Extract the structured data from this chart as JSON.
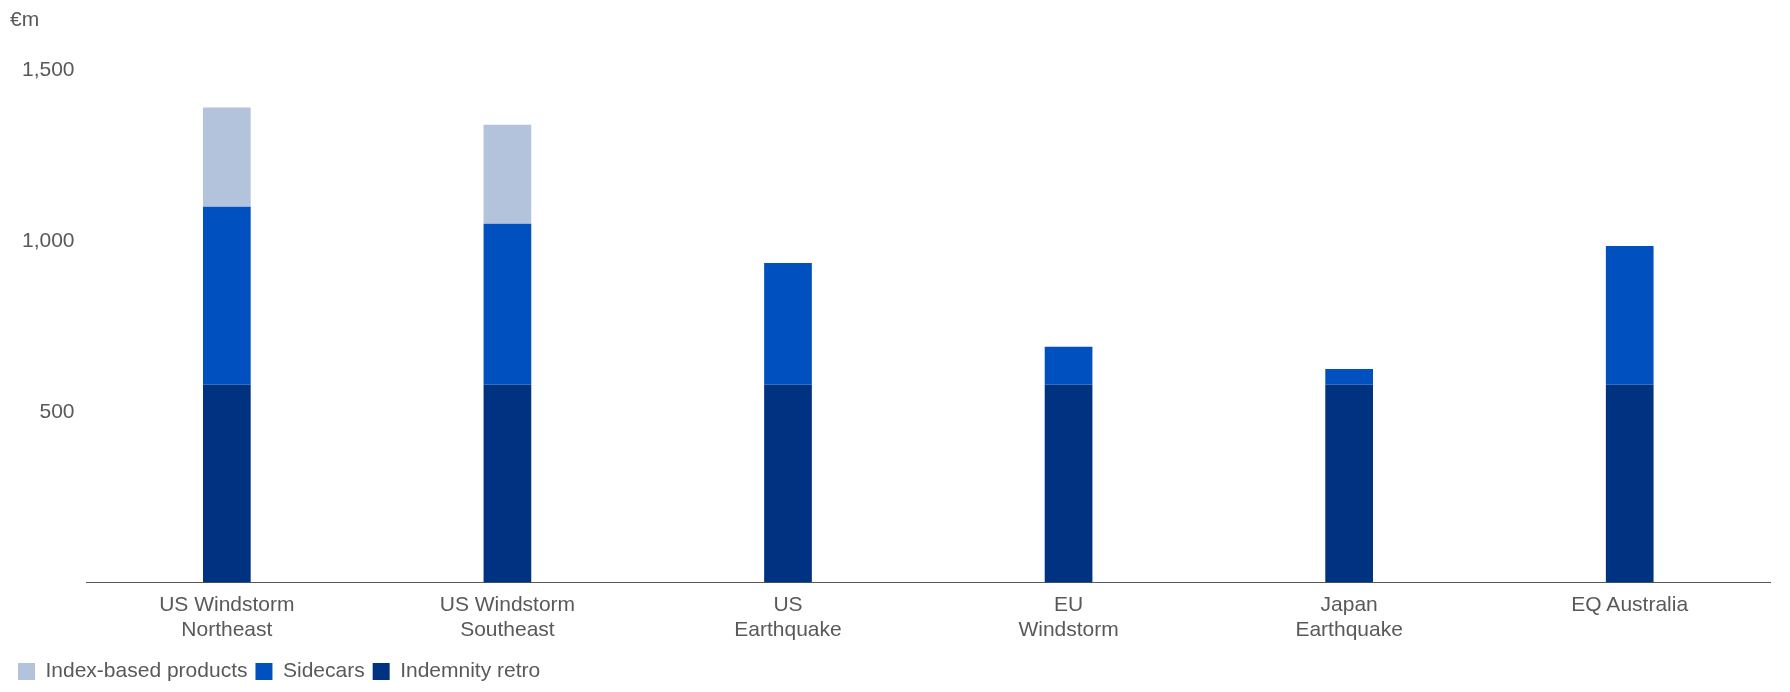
{
  "chart_data": {
    "type": "bar",
    "ylabel": "€m",
    "categories": [
      "US Windstorm\nNortheast",
      "US Windstorm\nSoutheast",
      "US\nEarthquake",
      "EU\nWindstorm",
      "Japan\nEarthquake",
      "EQ Australia"
    ],
    "stacked": true,
    "series": [
      {
        "name": "Indemnity retro",
        "color": "#003282",
        "values": [
          580,
          580,
          580,
          580,
          580,
          580
        ]
      },
      {
        "name": "Sidecars",
        "color": "#0050c0",
        "values": [
          520,
          470,
          355,
          110,
          45,
          405
        ]
      },
      {
        "name": "Index-based products",
        "color": "#b4c3dc",
        "values": [
          290,
          290,
          null,
          null,
          null,
          null
        ]
      }
    ],
    "ylim": [
      0,
      1500
    ],
    "yticks": [
      {
        "value": 500,
        "label": "500"
      },
      {
        "value": 1000,
        "label": "1,000"
      },
      {
        "value": 1500,
        "label": "1,500"
      }
    ],
    "grid": false,
    "legend": "bottom left"
  }
}
